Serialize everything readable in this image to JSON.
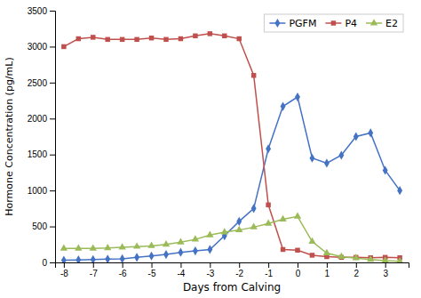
{
  "chart_data": {
    "type": "line",
    "xlabel": "Days from Calving",
    "ylabel": "Hormone Concentration (pg/mL)",
    "x": [
      -8,
      -7.5,
      -7,
      -6.5,
      -6,
      -5.5,
      -5,
      -4.5,
      -4,
      -3.5,
      -3,
      -2.5,
      -2,
      -1.5,
      -1,
      -0.5,
      0,
      0.5,
      1,
      1.5,
      2,
      2.5,
      3,
      3.5
    ],
    "series": [
      {
        "name": "PGFM",
        "color": "#4472C4",
        "marker": "diamond",
        "values": [
          30,
          35,
          40,
          45,
          50,
          70,
          90,
          110,
          140,
          160,
          180,
          370,
          570,
          750,
          1580,
          2170,
          2300,
          1450,
          1380,
          1490,
          1750,
          1800,
          1280,
          1000
        ]
      },
      {
        "name": "P4",
        "color": "#C0504D",
        "marker": "square",
        "values": [
          3000,
          3110,
          3130,
          3100,
          3100,
          3100,
          3120,
          3100,
          3110,
          3150,
          3180,
          3150,
          3110,
          2600,
          800,
          180,
          170,
          100,
          80,
          70,
          70,
          65,
          70,
          65
        ]
      },
      {
        "name": "E2",
        "color": "#9BBB59",
        "marker": "triangle",
        "values": [
          195,
          195,
          195,
          200,
          210,
          220,
          230,
          250,
          280,
          320,
          380,
          420,
          450,
          490,
          540,
          600,
          640,
          290,
          130,
          80,
          60,
          40,
          25,
          15
        ]
      }
    ],
    "xlim": [
      -8.3,
      3.8
    ],
    "xticks": [
      -8,
      -7,
      -6,
      -5,
      -4,
      -3,
      -2,
      -1,
      0,
      1,
      2,
      3
    ],
    "ylim": [
      0,
      3500
    ],
    "yticks": [
      0,
      500,
      1000,
      1500,
      2000,
      2500,
      3000,
      3500
    ],
    "grid": false,
    "legend": "upper right"
  }
}
